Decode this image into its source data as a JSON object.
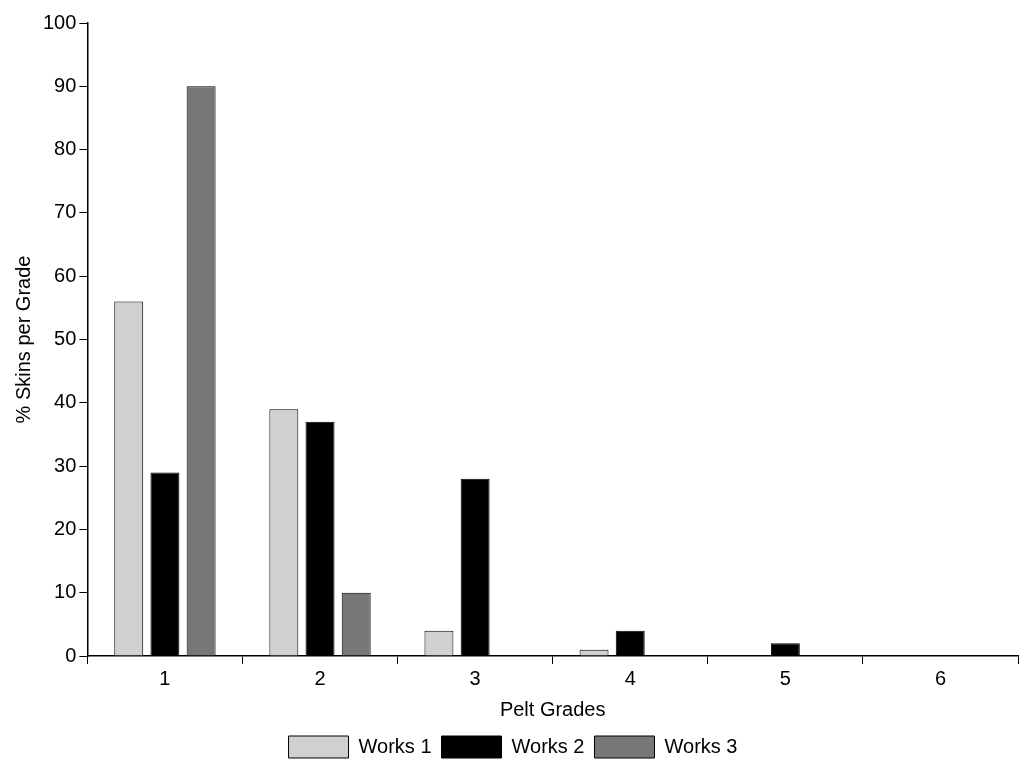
{
  "chart_data": {
    "type": "bar",
    "xlabel": "Pelt Grades",
    "ylabel": "% Skins per Grade",
    "categories": [
      "1",
      "2",
      "3",
      "4",
      "5",
      "6"
    ],
    "series": [
      {
        "name": "Works 1",
        "color": "#d0d0d0",
        "values": [
          56,
          39,
          4,
          1,
          0,
          0
        ]
      },
      {
        "name": "Works 2",
        "color": "#000000",
        "values": [
          29,
          37,
          28,
          4,
          2,
          0
        ]
      },
      {
        "name": "Works 3",
        "color": "#777777",
        "values": [
          90,
          10,
          0,
          0,
          0,
          0
        ]
      }
    ],
    "ylim": [
      0,
      100
    ],
    "yticks": [
      0,
      10,
      20,
      30,
      40,
      50,
      60,
      70,
      80,
      90,
      100
    ],
    "grid": false,
    "legend": "bottom"
  }
}
